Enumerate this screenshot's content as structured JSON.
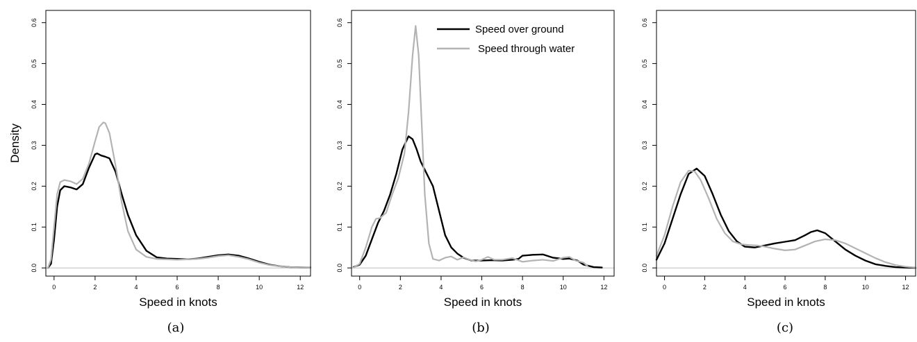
{
  "chart_data": [
    {
      "type": "line",
      "caption": "(a)",
      "xlabel": "Speed in knots",
      "ylabel": "Density",
      "xlim": [
        -0.4,
        12.5
      ],
      "ylim": [
        -0.02,
        0.63
      ],
      "xticks": [
        0,
        2,
        4,
        6,
        8,
        10,
        12
      ],
      "yticks": [
        0.0,
        0.1,
        0.2,
        0.3,
        0.4,
        0.5,
        0.6
      ],
      "baseline": 0,
      "series": [
        {
          "key": "sog",
          "color": "#000000",
          "x": [
            -0.3,
            -0.15,
            0,
            0.15,
            0.3,
            0.5,
            0.8,
            1.1,
            1.4,
            1.7,
            2.0,
            2.1,
            2.3,
            2.5,
            2.7,
            3.0,
            3.3,
            3.6,
            4.0,
            4.5,
            5.0,
            5.5,
            6.0,
            6.5,
            7.0,
            7.5,
            8.0,
            8.5,
            9.0,
            9.5,
            10.0,
            10.5,
            11.0,
            11.5,
            12.0,
            12.5
          ],
          "y": [
            0.0,
            0.01,
            0.07,
            0.15,
            0.19,
            0.2,
            0.197,
            0.192,
            0.205,
            0.245,
            0.278,
            0.28,
            0.275,
            0.272,
            0.268,
            0.235,
            0.18,
            0.13,
            0.08,
            0.042,
            0.026,
            0.023,
            0.022,
            0.021,
            0.023,
            0.027,
            0.031,
            0.033,
            0.03,
            0.023,
            0.015,
            0.008,
            0.004,
            0.002,
            0.0012,
            0.0008
          ]
        },
        {
          "key": "stw",
          "color": "#b3b3b3",
          "x": [
            -0.3,
            -0.15,
            0,
            0.15,
            0.3,
            0.5,
            0.8,
            1.1,
            1.4,
            1.7,
            2.0,
            2.2,
            2.4,
            2.5,
            2.7,
            3.0,
            3.3,
            3.6,
            4.0,
            4.5,
            5.0,
            5.5,
            6.0,
            6.5,
            7.0,
            7.5,
            8.0,
            8.5,
            9.0,
            9.5,
            10.0,
            10.5,
            11.0,
            11.5,
            12.0,
            12.5
          ],
          "y": [
            0.0,
            0.02,
            0.1,
            0.18,
            0.21,
            0.215,
            0.212,
            0.205,
            0.218,
            0.255,
            0.31,
            0.345,
            0.356,
            0.354,
            0.33,
            0.25,
            0.16,
            0.09,
            0.045,
            0.027,
            0.022,
            0.021,
            0.02,
            0.021,
            0.022,
            0.025,
            0.029,
            0.031,
            0.027,
            0.021,
            0.013,
            0.007,
            0.004,
            0.002,
            0.0012,
            0.0008
          ]
        }
      ]
    },
    {
      "type": "line",
      "caption": "(b)",
      "xlabel": "Speed in knots",
      "ylabel": "",
      "xlim": [
        -0.4,
        12.5
      ],
      "ylim": [
        -0.02,
        0.63
      ],
      "xticks": [
        0,
        2,
        4,
        6,
        8,
        10,
        12
      ],
      "yticks": [
        0.0,
        0.1,
        0.2,
        0.3,
        0.4,
        0.5,
        0.6
      ],
      "baseline": 0,
      "legend": {
        "position": "top-right",
        "entries": [
          "Speed over ground",
          "Speed through water"
        ]
      },
      "series": [
        {
          "key": "sog",
          "name": "Speed over ground",
          "color": "#000000",
          "x": [
            -0.3,
            0,
            0.3,
            0.6,
            0.9,
            1.2,
            1.5,
            1.8,
            2.1,
            2.4,
            2.6,
            2.8,
            3.0,
            3.3,
            3.6,
            3.9,
            4.2,
            4.5,
            4.8,
            5.1,
            5.5,
            6.0,
            6.5,
            7.0,
            7.5,
            7.8,
            8.0,
            8.5,
            9.0,
            9.5,
            10.0,
            10.3,
            10.7,
            11.0,
            11.5,
            11.9
          ],
          "y": [
            0.002,
            0.008,
            0.03,
            0.07,
            0.11,
            0.14,
            0.18,
            0.23,
            0.29,
            0.322,
            0.315,
            0.29,
            0.26,
            0.23,
            0.2,
            0.14,
            0.08,
            0.05,
            0.035,
            0.025,
            0.018,
            0.018,
            0.019,
            0.018,
            0.02,
            0.022,
            0.03,
            0.032,
            0.033,
            0.025,
            0.022,
            0.023,
            0.018,
            0.008,
            0.002,
            0.001
          ]
        },
        {
          "key": "stw",
          "name": "Speed through water",
          "color": "#b3b3b3",
          "x": [
            -0.3,
            0,
            0.3,
            0.6,
            0.8,
            1.0,
            1.3,
            1.6,
            1.9,
            2.2,
            2.4,
            2.6,
            2.75,
            2.9,
            3.05,
            3.2,
            3.4,
            3.6,
            3.9,
            4.2,
            4.5,
            4.8,
            5.1,
            5.4,
            5.7,
            6.0,
            6.3,
            6.6,
            7.0,
            7.5,
            8.0,
            8.5,
            9.0,
            9.5,
            10.0,
            10.3,
            10.6,
            11.0,
            11.2
          ],
          "y": [
            0.001,
            0.01,
            0.05,
            0.1,
            0.12,
            0.122,
            0.135,
            0.18,
            0.22,
            0.28,
            0.38,
            0.52,
            0.592,
            0.52,
            0.35,
            0.18,
            0.06,
            0.022,
            0.018,
            0.025,
            0.028,
            0.02,
            0.026,
            0.02,
            0.016,
            0.02,
            0.027,
            0.02,
            0.02,
            0.024,
            0.015,
            0.018,
            0.02,
            0.017,
            0.025,
            0.027,
            0.018,
            0.013,
            0.004
          ]
        }
      ]
    },
    {
      "type": "line",
      "caption": "(c)",
      "xlabel": "Speed in knots",
      "ylabel": "",
      "xlim": [
        -0.4,
        12.5
      ],
      "ylim": [
        -0.02,
        0.63
      ],
      "xticks": [
        0,
        2,
        4,
        6,
        8,
        10,
        12
      ],
      "yticks": [
        0.0,
        0.1,
        0.2,
        0.3,
        0.4,
        0.5,
        0.6
      ],
      "baseline": 0,
      "series": [
        {
          "key": "sog",
          "color": "#000000",
          "x": [
            -0.4,
            0,
            0.4,
            0.8,
            1.2,
            1.6,
            2.0,
            2.4,
            2.8,
            3.2,
            3.6,
            4.0,
            4.5,
            5.0,
            5.5,
            6.0,
            6.5,
            7.0,
            7.3,
            7.6,
            8.0,
            8.5,
            9.0,
            9.5,
            10.0,
            10.5,
            11.0,
            11.5,
            12.0,
            12.5
          ],
          "y": [
            0.02,
            0.06,
            0.12,
            0.18,
            0.23,
            0.243,
            0.225,
            0.18,
            0.13,
            0.09,
            0.065,
            0.052,
            0.05,
            0.055,
            0.06,
            0.064,
            0.068,
            0.08,
            0.088,
            0.092,
            0.085,
            0.065,
            0.045,
            0.03,
            0.018,
            0.009,
            0.005,
            0.002,
            0.0008,
            0.0003
          ]
        },
        {
          "key": "stw",
          "color": "#b3b3b3",
          "x": [
            -0.4,
            0,
            0.4,
            0.8,
            1.2,
            1.5,
            1.8,
            2.2,
            2.6,
            3.0,
            3.4,
            3.8,
            4.2,
            4.6,
            5.0,
            5.5,
            6.0,
            6.5,
            7.0,
            7.5,
            8.0,
            8.5,
            9.0,
            9.5,
            10.0,
            10.5,
            11.0,
            11.5,
            12.0,
            12.5
          ],
          "y": [
            0.03,
            0.08,
            0.15,
            0.21,
            0.238,
            0.236,
            0.215,
            0.17,
            0.12,
            0.085,
            0.065,
            0.058,
            0.056,
            0.055,
            0.052,
            0.047,
            0.043,
            0.045,
            0.055,
            0.065,
            0.07,
            0.068,
            0.06,
            0.048,
            0.036,
            0.024,
            0.014,
            0.007,
            0.003,
            0.001
          ]
        }
      ]
    }
  ]
}
